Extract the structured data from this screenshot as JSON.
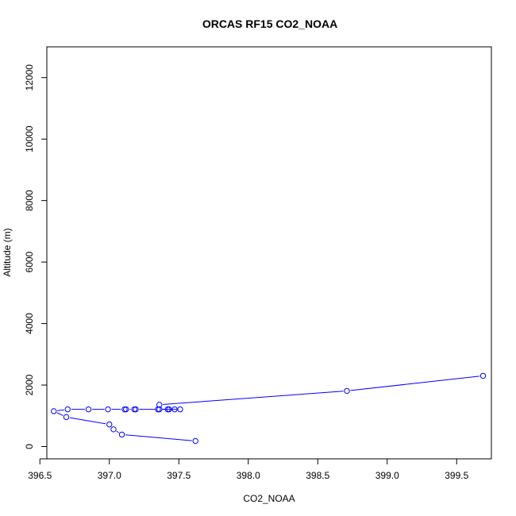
{
  "chart_data": {
    "type": "line",
    "title": "ORCAS RF15 CO2_NOAA",
    "xlabel": "CO2_NOAA",
    "ylabel": "Altitude (m)",
    "xlim": [
      396.55,
      399.75
    ],
    "ylim": [
      -400,
      13000
    ],
    "x_ticks": [
      396.5,
      397.0,
      397.5,
      398.0,
      398.5,
      399.0,
      399.5
    ],
    "x_tick_labels": [
      "396.5",
      "397.0",
      "397.5",
      "398.0",
      "398.5",
      "399.0",
      "399.5"
    ],
    "y_ticks": [
      0,
      2000,
      4000,
      6000,
      8000,
      10000,
      12000
    ],
    "y_tick_labels": [
      "0",
      "2000",
      "4000",
      "6000",
      "8000",
      "10000",
      "12000"
    ],
    "grid": false,
    "series": [
      {
        "color": "#0000ff",
        "marker": "open-circle",
        "points": [
          [
            399.69,
            2300
          ],
          [
            398.71,
            1810
          ],
          [
            397.36,
            1360
          ],
          [
            397.35,
            1210
          ],
          [
            397.51,
            1210
          ],
          [
            397.47,
            1210
          ],
          [
            397.43,
            1210
          ],
          [
            397.42,
            1210
          ],
          [
            397.36,
            1210
          ],
          [
            397.19,
            1210
          ],
          [
            397.18,
            1210
          ],
          [
            397.12,
            1210
          ],
          [
            397.11,
            1210
          ],
          [
            396.99,
            1210
          ],
          [
            396.85,
            1210
          ],
          [
            396.7,
            1210
          ],
          [
            396.6,
            1150
          ],
          [
            396.69,
            960
          ],
          [
            397.0,
            720
          ],
          [
            397.03,
            560
          ],
          [
            397.09,
            390
          ],
          [
            397.62,
            180
          ]
        ]
      }
    ]
  }
}
